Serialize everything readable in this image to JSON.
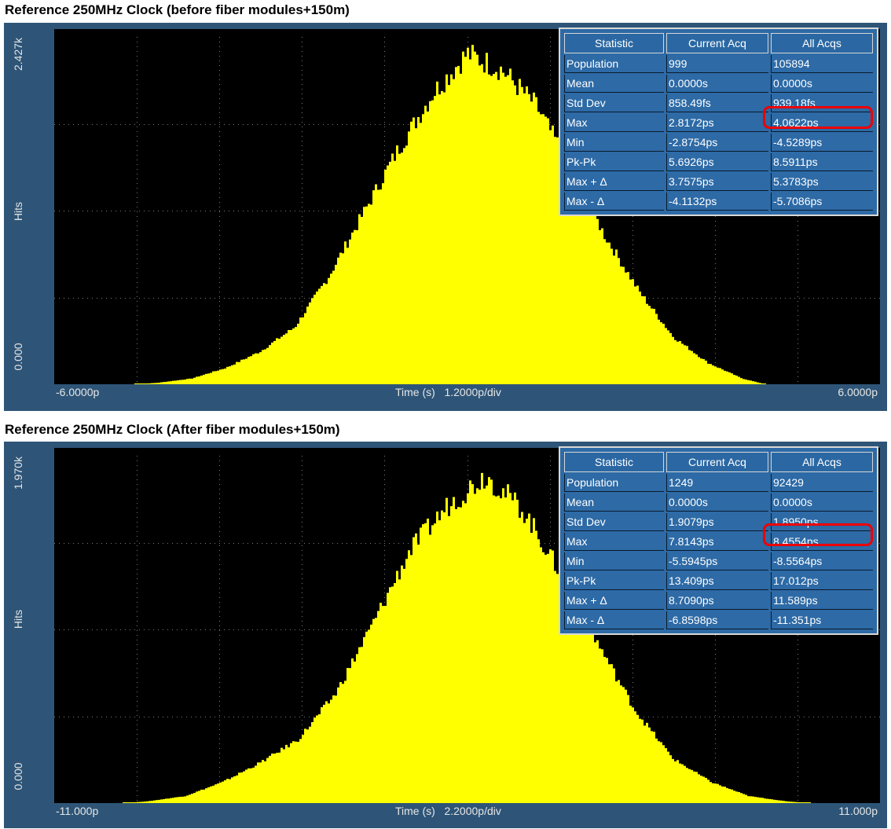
{
  "charts": [
    {
      "panel_title": "Reference 250MHz Clock (before fiber modules+150m)",
      "y_axis_label": "Hits",
      "y_max_label": "2.427k",
      "y_min_label": "0.000",
      "x_min_label": "-6.0000p",
      "x_max_label": "6.0000p",
      "x_center_label": "Time (s)   1.2000p/div",
      "stats": {
        "headers": [
          "Statistic",
          "Current Acq",
          "All Acqs"
        ],
        "rows": [
          [
            "Population",
            "999",
            "105894"
          ],
          [
            "Mean",
            "0.0000s",
            "0.0000s"
          ],
          [
            "Std Dev",
            "858.49fs",
            "939.18fs"
          ],
          [
            "Max",
            "2.8172ps",
            "4.0622ps"
          ],
          [
            "Min",
            "-2.8754ps",
            "-4.5289ps"
          ],
          [
            "Pk-Pk",
            "5.6926ps",
            "8.5911ps"
          ],
          [
            "Max + Δ",
            "3.7575ps",
            "5.3783ps"
          ],
          [
            "Max - Δ",
            "-4.1132ps",
            "-5.7086ps"
          ]
        ]
      }
    },
    {
      "panel_title": "Reference 250MHz Clock (After fiber modules+150m)",
      "y_axis_label": "Hits",
      "y_max_label": "1.970k",
      "y_min_label": "0.000",
      "x_min_label": "-11.000p",
      "x_max_label": "11.000p",
      "x_center_label": "Time (s)   2.2000p/div",
      "stats": {
        "headers": [
          "Statistic",
          "Current Acq",
          "All Acqs"
        ],
        "rows": [
          [
            "Population",
            "1249",
            "92429"
          ],
          [
            "Mean",
            "0.0000s",
            "0.0000s"
          ],
          [
            "Std Dev",
            "1.9079ps",
            "1.8950ps"
          ],
          [
            "Max",
            "7.8143ps",
            "8.4554ps"
          ],
          [
            "Min",
            "-5.5945ps",
            "-8.5564ps"
          ],
          [
            "Pk-Pk",
            "13.409ps",
            "17.012ps"
          ],
          [
            "Max + Δ",
            "8.7090ps",
            "11.589ps"
          ],
          [
            "Max - Δ",
            "-6.8598ps",
            "-11.351ps"
          ]
        ]
      }
    }
  ],
  "chart_data": [
    {
      "type": "histogram",
      "title": "Reference 250MHz Clock (before fiber modules+150m)",
      "xlabel": "Time (s)",
      "ylabel": "Hits",
      "xlim": [
        -6e-12,
        6e-12
      ],
      "ylim": [
        0,
        2427
      ],
      "x_div": "1.2000p/div",
      "divisions_x": 10,
      "divisions_y": 4,
      "grid": true,
      "bar_color": "#ffff00",
      "peak_x": 0.0,
      "std_dev_s": 9.3918e-13,
      "bins_center_s": [
        -4.5e-12,
        -4e-12,
        -3.5e-12,
        -3e-12,
        -2.5e-12,
        -2e-12,
        -1.5e-12,
        -1e-12,
        -5e-13,
        0.0,
        5e-13,
        1e-12,
        1.5e-12,
        2e-12,
        2.5e-12,
        3e-12,
        3.5e-12,
        4e-12
      ],
      "bins_hits": [
        10,
        40,
        115,
        230,
        400,
        760,
        1200,
        1640,
        2030,
        2310,
        2200,
        1950,
        1520,
        1040,
        650,
        330,
        150,
        40
      ],
      "highlight": {
        "row": 2,
        "col": 2,
        "color": "#ee0000"
      }
    },
    {
      "type": "histogram",
      "title": "Reference 250MHz Clock (After fiber modules+150m)",
      "xlabel": "Time (s)",
      "ylabel": "Hits",
      "xlim": [
        -1.1e-11,
        1.1e-11
      ],
      "ylim": [
        0,
        1970
      ],
      "x_div": "2.2000p/div",
      "divisions_x": 10,
      "divisions_y": 4,
      "grid": true,
      "bar_color": "#ffff00",
      "peak_x": 0.0,
      "std_dev_s": 1.895e-12,
      "bins_center_s": [
        -8.5e-12,
        -7.5e-12,
        -6.5e-12,
        -5.5e-12,
        -4.5e-12,
        -3.5e-12,
        -2.5e-12,
        -1.5e-12,
        -5e-13,
        5e-13,
        1.5e-12,
        2.5e-12,
        3.5e-12,
        4.5e-12,
        5.5e-12,
        6.5e-12,
        7.5e-12,
        8.5e-12
      ],
      "bins_hits": [
        10,
        40,
        120,
        230,
        360,
        620,
        1020,
        1440,
        1690,
        1860,
        1660,
        1300,
        900,
        520,
        250,
        120,
        40,
        10
      ],
      "highlight": {
        "row": 2,
        "col": 2,
        "color": "#ee0000"
      }
    }
  ]
}
